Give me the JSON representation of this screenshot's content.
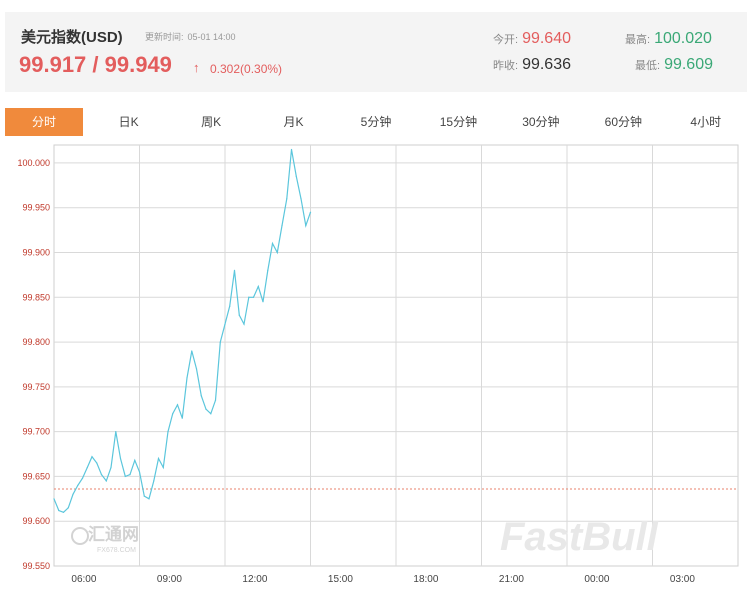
{
  "quote": {
    "name": "美元指数(USD)",
    "update_label": "更新时间:",
    "update_time": "05-01 14:00",
    "bid_ask": "99.917 / 99.949",
    "arrow": "↑",
    "change": "0.302(0.30%)",
    "open_label": "今开:",
    "open_value": "99.640",
    "high_label": "最高:",
    "high_value": "100.020",
    "prev_close_label": "昨收:",
    "prev_close_value": "99.636",
    "low_label": "最低:",
    "low_value": "99.609"
  },
  "tabs": [
    "分时",
    "日K",
    "周K",
    "月K",
    "5分钟",
    "15分钟",
    "30分钟",
    "60分钟",
    "4小时"
  ],
  "active_tab": "分时",
  "colors": {
    "line": "#5bc6dc",
    "reference": "#e8826b",
    "up": "#e35d5d",
    "down": "#3aa876",
    "active_tab": "#f08a3c"
  },
  "chart_data": {
    "type": "line",
    "title": "",
    "xlabel": "",
    "ylabel": "",
    "x_ticks": [
      "06:00",
      "09:00",
      "12:00",
      "15:00",
      "18:00",
      "21:00",
      "00:00",
      "03:00"
    ],
    "y_ticks": [
      "100.000",
      "99.950",
      "99.900",
      "99.850",
      "99.800",
      "99.750",
      "99.700",
      "99.650",
      "99.600",
      "99.550"
    ],
    "ylim": [
      99.55,
      100.02
    ],
    "reference_line": 99.636,
    "grid": true,
    "series": [
      {
        "x": [
          "05:00",
          "05:10",
          "05:20",
          "05:30",
          "05:40",
          "05:50",
          "06:00",
          "06:10",
          "06:20",
          "06:30",
          "06:40",
          "06:50",
          "07:00",
          "07:10",
          "07:20",
          "07:30",
          "07:40",
          "07:50",
          "08:00",
          "08:10",
          "08:20",
          "08:30",
          "08:40",
          "08:50",
          "09:00",
          "09:10",
          "09:20",
          "09:30",
          "09:40",
          "09:50",
          "10:00",
          "10:10",
          "10:20",
          "10:30",
          "10:40",
          "10:50",
          "11:00",
          "11:10",
          "11:20",
          "11:30",
          "11:40",
          "11:50",
          "12:00",
          "12:10",
          "12:20",
          "12:30",
          "12:40",
          "12:50",
          "13:00",
          "13:10",
          "13:20",
          "13:30",
          "13:40",
          "13:50",
          "14:00"
        ],
        "y": [
          99.625,
          99.612,
          99.61,
          99.615,
          99.63,
          99.64,
          99.648,
          99.66,
          99.672,
          99.665,
          99.652,
          99.645,
          99.66,
          99.7,
          99.67,
          99.65,
          99.652,
          99.668,
          99.655,
          99.628,
          99.625,
          99.645,
          99.67,
          99.66,
          99.7,
          99.72,
          99.73,
          99.715,
          99.76,
          99.79,
          99.77,
          99.74,
          99.725,
          99.72,
          99.735,
          99.8,
          99.82,
          99.84,
          99.88,
          99.83,
          99.82,
          99.85,
          99.85,
          99.862,
          99.845,
          99.88,
          99.91,
          99.9,
          99.93,
          99.96,
          100.015,
          99.985,
          99.96,
          99.93,
          99.945
        ]
      }
    ]
  },
  "watermark": {
    "left_brand": "汇通网",
    "left_sub": "FX678.COM",
    "right_brand": "FastBull"
  }
}
